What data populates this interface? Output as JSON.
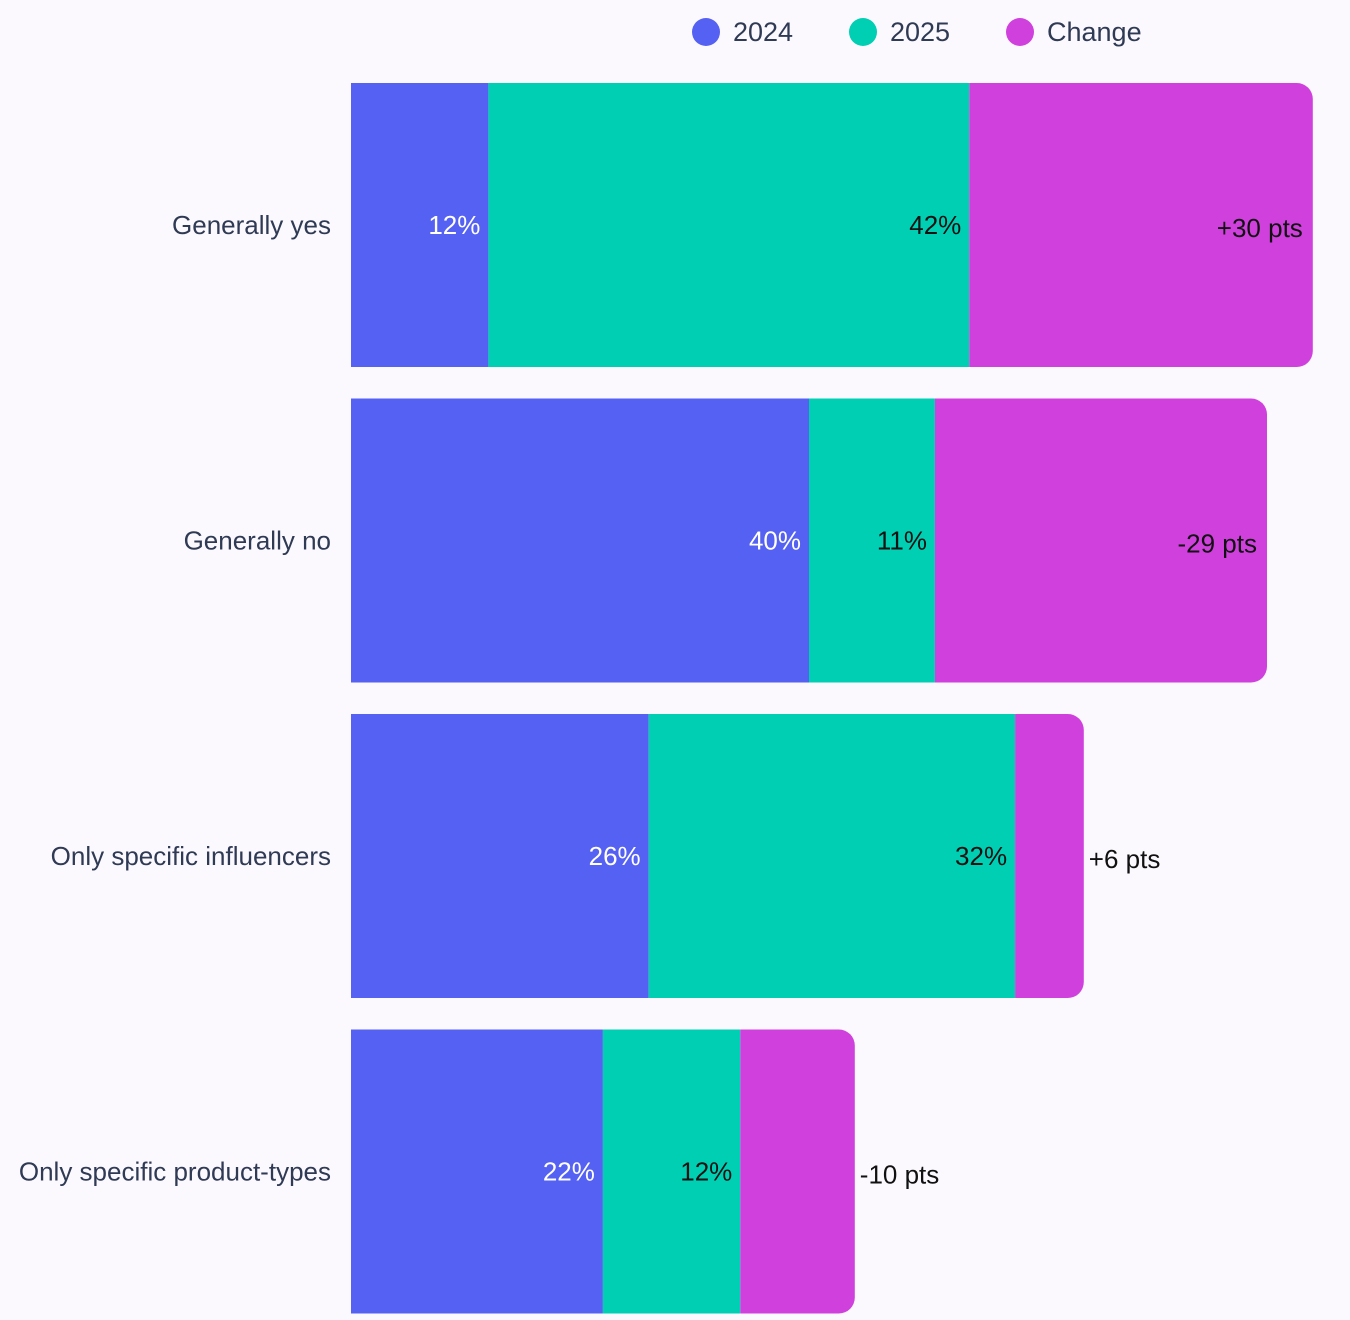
{
  "chart_data": {
    "type": "bar",
    "orientation": "horizontal-stacked",
    "categories": [
      "Generally yes",
      "Generally no",
      "Only specific influencers",
      "Only specific product-types"
    ],
    "series": [
      {
        "name": "2024",
        "values": [
          12,
          40,
          26,
          22
        ],
        "labels": [
          "12%",
          "40%",
          "26%",
          "22%"
        ]
      },
      {
        "name": "2025",
        "values": [
          42,
          11,
          32,
          12
        ],
        "labels": [
          "42%",
          "11%",
          "32%",
          "12%"
        ]
      },
      {
        "name": "Change",
        "values": [
          30,
          -29,
          6,
          -10
        ],
        "labels": [
          "+30 pts",
          "-29 pts",
          "+6 pts",
          "-10 pts"
        ]
      }
    ],
    "legend_position": "top-right",
    "grid": false
  },
  "colors": {
    "series_2024": "#5561f2",
    "series_2025": "#00cfb4",
    "series_change": "#cf40dd",
    "label_on_2024": "#ffffff",
    "label_on_2025": "#111111",
    "label_change": "#111111",
    "category_text": "#2f3a55",
    "background": "#fcf9fe"
  }
}
